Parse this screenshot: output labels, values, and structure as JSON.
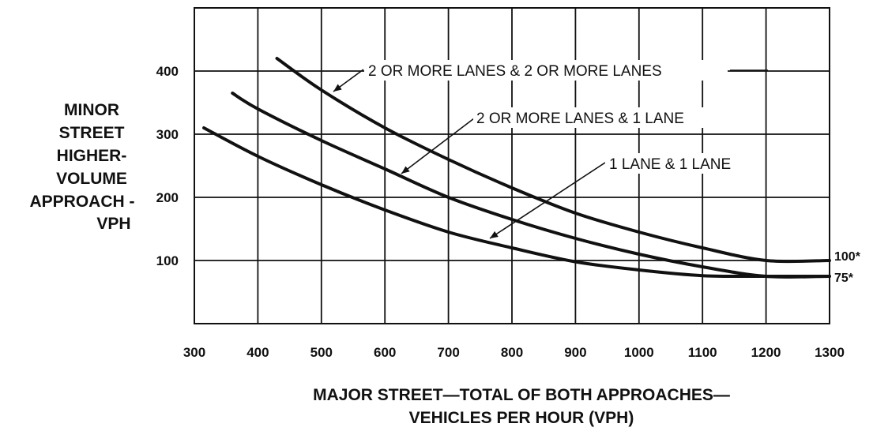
{
  "chart_data": {
    "type": "line",
    "xlabel_lines": [
      "MAJOR STREET—TOTAL OF BOTH APPROACHES—",
      "VEHICLES PER HOUR (VPH)"
    ],
    "ylabel_lines": [
      "MINOR",
      "STREET",
      "HIGHER-",
      "VOLUME",
      "APPROACH -",
      "VPH"
    ],
    "xlim": [
      300,
      1300
    ],
    "ylim": [
      0,
      500
    ],
    "x_ticks": [
      300,
      400,
      500,
      600,
      700,
      800,
      900,
      1000,
      1100,
      1200,
      1300
    ],
    "y_ticks": [
      100,
      200,
      300,
      400
    ],
    "grid": true,
    "series": [
      {
        "name": "2 OR MORE LANES & 2 OR MORE LANES",
        "x": [
          430,
          500,
          600,
          700,
          800,
          900,
          1000,
          1100,
          1200,
          1300
        ],
        "y": [
          420,
          370,
          310,
          260,
          215,
          175,
          145,
          120,
          100,
          100
        ]
      },
      {
        "name": "2 OR MORE LANES & 1 LANE",
        "x": [
          360,
          400,
          500,
          600,
          700,
          800,
          900,
          1000,
          1100,
          1200,
          1300
        ],
        "y": [
          365,
          340,
          290,
          245,
          200,
          165,
          135,
          110,
          90,
          75,
          75
        ]
      },
      {
        "name": "1 LANE & 1 LANE",
        "x": [
          315,
          400,
          500,
          600,
          700,
          800,
          900,
          1000,
          1100,
          1200,
          1300
        ],
        "y": [
          310,
          265,
          220,
          180,
          145,
          120,
          98,
          85,
          76,
          75,
          75
        ]
      }
    ],
    "annotations": [
      "100*",
      "75*"
    ]
  }
}
